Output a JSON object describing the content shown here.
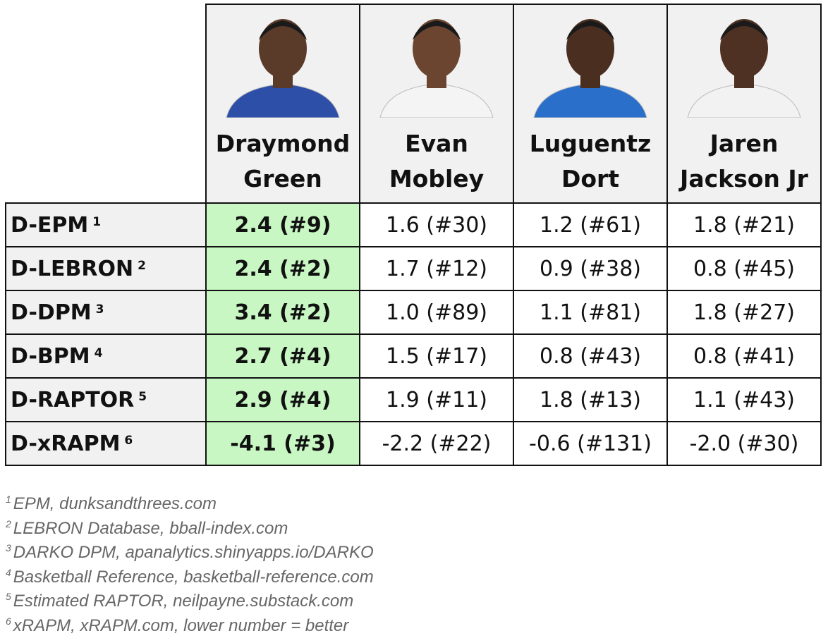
{
  "table": {
    "players": [
      {
        "first": "Draymond",
        "last": "Green"
      },
      {
        "first": "Evan",
        "last": "Mobley"
      },
      {
        "first": "Luguentz",
        "last": "Dort"
      },
      {
        "first": "Jaren",
        "last": "Jackson Jr"
      }
    ],
    "rows": [
      {
        "label": "D-EPM",
        "note": "1",
        "values": [
          "2.4 (#9)",
          "1.6 (#30)",
          "1.2 (#61)",
          "1.8 (#21)"
        ]
      },
      {
        "label": "D-LEBRON",
        "note": "2",
        "values": [
          "2.4 (#2)",
          "1.7 (#12)",
          "0.9 (#38)",
          "0.8 (#45)"
        ]
      },
      {
        "label": "D-DPM",
        "note": "3",
        "values": [
          "3.4 (#2)",
          "1.0 (#89)",
          "1.1 (#81)",
          "1.8 (#27)"
        ]
      },
      {
        "label": "D-BPM",
        "note": "4",
        "values": [
          "2.7 (#4)",
          "1.5 (#17)",
          "0.8 (#43)",
          "0.8 (#41)"
        ]
      },
      {
        "label": "D-RAPTOR",
        "note": "5",
        "values": [
          "2.9 (#4)",
          "1.9 (#11)",
          "1.8 (#13)",
          "1.1 (#43)"
        ]
      },
      {
        "label": "D-xRAPM",
        "note": "6",
        "values": [
          "-4.1 (#3)",
          "-2.2 (#22)",
          "-0.6 (#131)",
          "-2.0 (#30)"
        ]
      }
    ]
  },
  "footnotes": [
    {
      "mark": "1",
      "text": "EPM, dunksandthrees.com"
    },
    {
      "mark": "2",
      "text": "LEBRON Database, bball-index.com"
    },
    {
      "mark": "3",
      "text": "DARKO DPM, apanalytics.shinyapps.io/DARKO"
    },
    {
      "mark": "4",
      "text": "Basketball Reference, basketball-reference.com"
    },
    {
      "mark": "5",
      "text": "Estimated RAPTOR, neilpayne.substack.com"
    },
    {
      "mark": "6",
      "text": "xRAPM, xRAPM.com, lower number = better"
    }
  ]
}
